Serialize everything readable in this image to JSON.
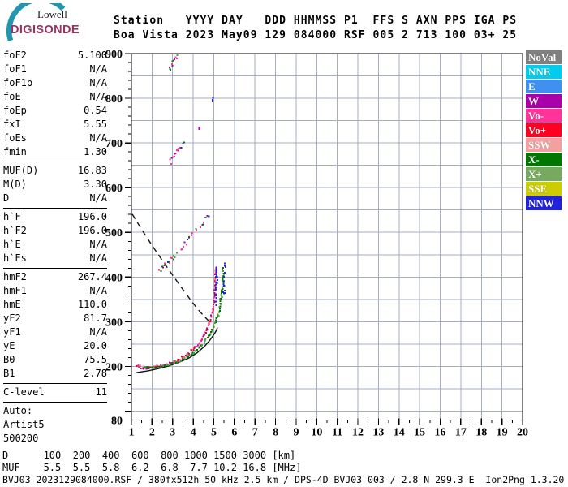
{
  "logo": {
    "line1": "Lowell",
    "line2": "DIGISONDE",
    "arc_color": "#2097AE",
    "digisonde_color": "#993366"
  },
  "header": {
    "line1": "Station   YYYY DAY   DDD HHMMSS P1  FFS S AXN PPS IGA PS",
    "line2": "Boa Vista 2023 May09 129 084000 RSF 005 2 713 100 03+ 25"
  },
  "params": {
    "groups": [
      {
        "rows": [
          [
            "foF2",
            "5.100"
          ],
          [
            "foF1",
            "N/A"
          ],
          [
            "foF1p",
            "N/A"
          ],
          [
            "foE",
            "N/A"
          ],
          [
            "foEp",
            "0.54"
          ],
          [
            "fxI",
            "5.55"
          ],
          [
            "foEs",
            "N/A"
          ],
          [
            "fmin",
            "1.30"
          ]
        ]
      },
      {
        "rows": [
          [
            "MUF(D)",
            "16.83"
          ],
          [
            "M(D)",
            "3.30"
          ],
          [
            "D",
            "N/A"
          ]
        ]
      },
      {
        "rows": [
          [
            "h`F",
            "196.0"
          ],
          [
            "h`F2",
            "196.0"
          ],
          [
            "h`E",
            "N/A"
          ],
          [
            "h`Es",
            "N/A"
          ]
        ]
      },
      {
        "rows": [
          [
            "hmF2",
            "267.4"
          ],
          [
            "hmF1",
            "N/A"
          ],
          [
            "hmE",
            "110.0"
          ],
          [
            "yF2",
            "81.7"
          ],
          [
            "yF1",
            "N/A"
          ],
          [
            "yE",
            "20.0"
          ],
          [
            "B0",
            "75.5"
          ],
          [
            "B1",
            "2.78"
          ]
        ]
      },
      {
        "rows": [
          [
            "C-level",
            "11"
          ]
        ]
      },
      {
        "rows": [
          [
            "Auto:",
            ""
          ],
          [
            "Artist5",
            ""
          ],
          [
            "500200",
            ""
          ]
        ]
      }
    ]
  },
  "legend": {
    "items": [
      {
        "label": "NoVal",
        "color": "#808080"
      },
      {
        "label": "NNE",
        "color": "#00CCEE"
      },
      {
        "label": "E",
        "color": "#4090F0"
      },
      {
        "label": "W",
        "color": "#AA00AA"
      },
      {
        "label": "Vo-",
        "color": "#FF3399"
      },
      {
        "label": "Vo+",
        "color": "#FF0022"
      },
      {
        "label": "SSW",
        "color": "#F2A0A0"
      },
      {
        "label": "X-",
        "color": "#007700"
      },
      {
        "label": "X+",
        "color": "#76AA5E"
      },
      {
        "label": "SSE",
        "color": "#CCCC00"
      },
      {
        "label": "NNW",
        "color": "#2222DD"
      }
    ]
  },
  "footer": {
    "d_row": "D      100  200  400  600  800 1000 1500 3000 [km]",
    "muf_row": "MUF    5.5  5.5  5.8  6.2  6.8  7.7 10.2 16.8 [MHz]",
    "status": "BVJ03_2023129084000.RSF / 380fx512h 50 kHz 2.5 km / DPS-4D BVJ03 003 / 2.8 N 299.3 E  Ion2Png 1.3.20"
  },
  "chart_data": {
    "type": "scatter",
    "title": "",
    "xlabel": "",
    "ylabel": "",
    "x_range": [
      1,
      20
    ],
    "y_range": [
      80,
      900
    ],
    "x_tick_labels": [
      1,
      2,
      3,
      4,
      5,
      6,
      7,
      8,
      9,
      10,
      11,
      12,
      13,
      14,
      15,
      16,
      17,
      18,
      19,
      20
    ],
    "y_tick_labels": [
      900,
      800,
      700,
      600,
      500,
      400,
      300,
      200,
      80
    ],
    "grid": {
      "on": true,
      "x_step_mhz": 1,
      "y_step_km": 50,
      "grid_color": "#A6AEC0",
      "axis_color": "#000000"
    },
    "legend_position": "right",
    "series": [
      {
        "name": "profile-line",
        "render": "line",
        "colors": [
          "#111111"
        ],
        "points": [
          [
            1.25,
            186
          ],
          [
            1.8,
            190
          ],
          [
            2.3,
            195
          ],
          [
            2.8,
            201
          ],
          [
            3.3,
            209
          ],
          [
            3.8,
            219
          ],
          [
            4.2,
            231
          ],
          [
            4.55,
            245
          ],
          [
            4.8,
            258
          ],
          [
            5.0,
            271
          ],
          [
            5.12,
            280
          ],
          [
            5.18,
            287
          ]
        ]
      },
      {
        "name": "muf-transmission-curve",
        "render": "dashed",
        "colors": [
          "#111111"
        ],
        "points": [
          [
            1.04,
            541
          ],
          [
            1.5,
            506
          ],
          [
            2.1,
            464
          ],
          [
            2.7,
            424
          ],
          [
            3.3,
            385
          ],
          [
            3.9,
            347
          ],
          [
            4.3,
            324
          ],
          [
            4.6,
            309
          ],
          [
            4.8,
            300
          ]
        ]
      },
      {
        "name": "f-trace-o-mode",
        "render": "dots",
        "spacing": 2.1,
        "jitter": 1.2,
        "colors": [
          "#FF3399",
          "#DD0033",
          "#FF3399",
          "#AA00AA",
          "#DD0033",
          "#FF3399"
        ],
        "points": [
          [
            1.27,
            200
          ],
          [
            1.4,
            198
          ],
          [
            1.55,
            197
          ],
          [
            1.7,
            196.5
          ],
          [
            1.85,
            197
          ],
          [
            2.0,
            198
          ],
          [
            2.15,
            199
          ],
          [
            2.3,
            200
          ],
          [
            2.45,
            201.5
          ],
          [
            2.6,
            203
          ],
          [
            2.75,
            205
          ],
          [
            2.9,
            207.5
          ],
          [
            3.05,
            210
          ],
          [
            3.2,
            213
          ],
          [
            3.35,
            216.5
          ],
          [
            3.5,
            220.5
          ],
          [
            3.65,
            225
          ],
          [
            3.8,
            230
          ],
          [
            3.95,
            236
          ],
          [
            4.1,
            243
          ],
          [
            4.25,
            251
          ],
          [
            4.4,
            260
          ],
          [
            4.55,
            271
          ],
          [
            4.68,
            283
          ],
          [
            4.79,
            296
          ],
          [
            4.88,
            310
          ],
          [
            4.95,
            326
          ],
          [
            5.0,
            342
          ],
          [
            5.04,
            358
          ],
          [
            5.07,
            375
          ],
          [
            5.09,
            392
          ],
          [
            5.1,
            408
          ],
          [
            5.11,
            420
          ]
        ]
      },
      {
        "name": "f-trace-x-mode",
        "render": "dots",
        "spacing": 2.1,
        "jitter": 1.1,
        "colors": [
          "#007700",
          "#007700",
          "#4FA03C",
          "#007700"
        ],
        "points": [
          [
            1.55,
            199
          ],
          [
            1.7,
            197.5
          ],
          [
            1.85,
            196.5
          ],
          [
            2.0,
            196.5
          ],
          [
            2.2,
            197.5
          ],
          [
            2.4,
            199
          ],
          [
            2.6,
            201
          ],
          [
            2.8,
            203.5
          ],
          [
            3.0,
            206.5
          ],
          [
            3.2,
            210
          ],
          [
            3.4,
            214
          ],
          [
            3.6,
            218.5
          ],
          [
            3.8,
            224
          ],
          [
            4.0,
            230.5
          ],
          [
            4.2,
            238
          ],
          [
            4.4,
            247
          ],
          [
            4.6,
            258
          ],
          [
            4.78,
            270
          ],
          [
            4.94,
            283
          ],
          [
            5.08,
            298
          ],
          [
            5.2,
            314
          ],
          [
            5.29,
            331
          ],
          [
            5.36,
            350
          ],
          [
            5.41,
            370
          ],
          [
            5.44,
            390
          ],
          [
            5.455,
            408
          ],
          [
            5.46,
            420
          ]
        ]
      },
      {
        "name": "trace-top-nnw",
        "render": "sparse",
        "spacing": 3.0,
        "jitter": 1.2,
        "colors": [
          "#2222DD"
        ],
        "points": [
          [
            5.08,
            332
          ],
          [
            5.1,
            345
          ],
          [
            5.11,
            358
          ],
          [
            5.12,
            372
          ],
          [
            5.125,
            386
          ],
          [
            5.13,
            399
          ],
          [
            5.135,
            411
          ],
          [
            5.14,
            421
          ],
          null,
          [
            5.49,
            352
          ],
          [
            5.5,
            366
          ],
          [
            5.51,
            381
          ],
          [
            5.52,
            395
          ],
          [
            5.53,
            408
          ],
          [
            5.545,
            420
          ],
          [
            5.555,
            430
          ]
        ]
      },
      {
        "name": "trace-start-ssw",
        "render": "sparse",
        "spacing": 3.0,
        "jitter": 1.0,
        "colors": [
          "#F2A0A0",
          "#FF3399"
        ],
        "points": [
          [
            1.3,
            203
          ],
          [
            1.42,
            202
          ],
          [
            1.55,
            201
          ]
        ]
      },
      {
        "name": "spread-echo-mid",
        "render": "sparse",
        "spacing": 3.6,
        "jitter": 2.0,
        "colors": [
          "#FF3399",
          "#AA00AA",
          "#007700",
          "#2222DD",
          "#FF3399",
          "#4FA03C"
        ],
        "points": [
          [
            2.35,
            413
          ],
          [
            2.5,
            420
          ],
          [
            2.65,
            427
          ],
          [
            2.8,
            433
          ],
          [
            2.95,
            440
          ],
          [
            3.1,
            447
          ],
          [
            3.28,
            456
          ],
          [
            3.46,
            465
          ],
          [
            3.64,
            475
          ],
          [
            3.82,
            486
          ],
          [
            4.0,
            496
          ],
          [
            4.2,
            508
          ],
          [
            4.42,
            520
          ],
          [
            4.62,
            530
          ],
          [
            4.8,
            539
          ],
          [
            4.92,
            545
          ]
        ]
      },
      {
        "name": "multiple-echo-680km",
        "render": "sparse",
        "spacing": 3.4,
        "jitter": 2.0,
        "colors": [
          "#FF3399",
          "#AA00AA",
          "#2222DD",
          "#007700",
          "#FF3399"
        ],
        "points": [
          [
            2.85,
            656
          ],
          [
            2.93,
            661
          ],
          [
            3.0,
            666
          ],
          [
            3.07,
            671
          ],
          [
            3.14,
            676
          ],
          [
            3.22,
            681
          ],
          [
            3.3,
            686
          ],
          [
            3.38,
            691
          ],
          [
            3.47,
            696
          ],
          [
            3.57,
            701
          ],
          [
            3.7,
            707
          ],
          [
            3.84,
            712
          ],
          [
            3.96,
            716
          ]
        ]
      },
      {
        "name": "multiple-echo-880km",
        "render": "sparse",
        "spacing": 3.2,
        "jitter": 1.6,
        "colors": [
          "#FF3399",
          "#007700",
          "#AA00AA",
          "#4FA03C"
        ],
        "points": [
          [
            2.77,
            859
          ],
          [
            2.84,
            865
          ],
          [
            2.9,
            870
          ],
          [
            2.97,
            875
          ],
          [
            3.04,
            880
          ],
          [
            3.11,
            885
          ],
          [
            3.18,
            890
          ],
          [
            3.26,
            894
          ]
        ]
      },
      {
        "name": "stray-echo-nnw",
        "render": "dots",
        "spacing": 2.5,
        "jitter": 0.4,
        "colors": [
          "#2222DD"
        ],
        "points": [
          [
            4.95,
            792
          ],
          [
            4.95,
            801
          ]
        ]
      },
      {
        "name": "stray-echo-w",
        "render": "dots",
        "spacing": 2.5,
        "jitter": 0.4,
        "colors": [
          "#AA00AA"
        ],
        "points": [
          [
            4.28,
            731
          ],
          [
            4.28,
            735
          ]
        ]
      },
      {
        "name": "faint-echo",
        "render": "sparse",
        "spacing": 4.0,
        "jitter": 0.8,
        "colors": [
          "#7EC8E8"
        ],
        "points": [
          [
            1.05,
            429
          ],
          [
            1.1,
            433
          ]
        ]
      }
    ]
  }
}
